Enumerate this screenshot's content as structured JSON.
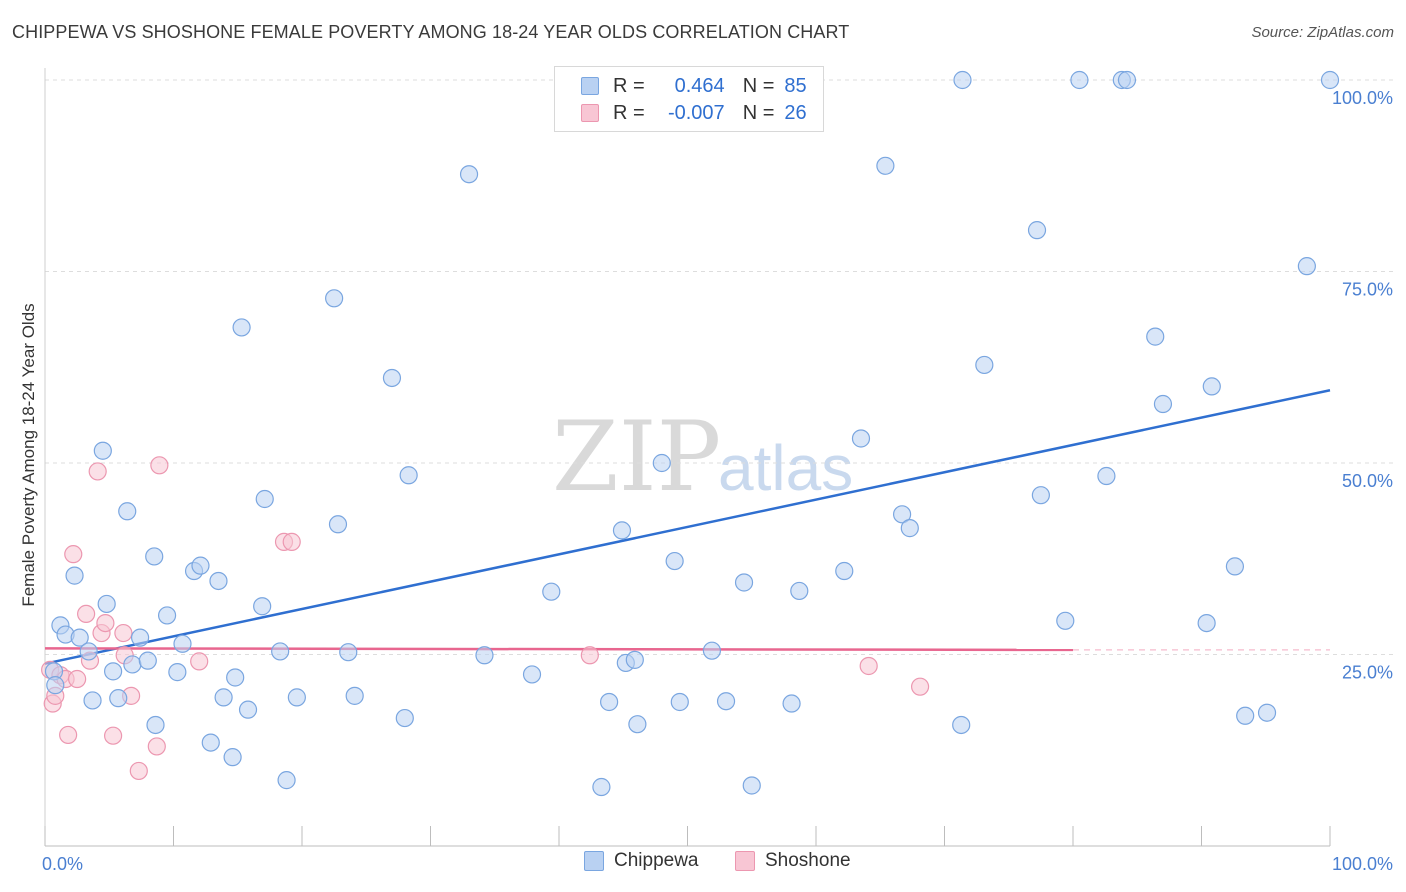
{
  "title": "CHIPPEWA VS SHOSHONE FEMALE POVERTY AMONG 18-24 YEAR OLDS CORRELATION CHART",
  "source": "Source: ZipAtlas.com",
  "watermark": {
    "zip": "ZIP",
    "atlas": "atlas"
  },
  "legend": {
    "r_label": "R =",
    "n_label": "N =",
    "chippewa": {
      "r": "0.464",
      "n": "85"
    },
    "shoshone": {
      "r": "-0.007",
      "n": "26"
    }
  },
  "colors": {
    "chippewa_fill": "#b9d1f2",
    "chippewa_stroke": "#7aa6e0",
    "chippewa_line": "#2f6fd0",
    "shoshone_fill": "#f8c6d4",
    "shoshone_stroke": "#ec97b0",
    "shoshone_line": "#e8668f",
    "axis_text": "#4a7fd1",
    "grid": "#dddddd"
  },
  "chart_data": {
    "type": "scatter",
    "title": "CHIPPEWA VS SHOSHONE FEMALE POVERTY AMONG 18-24 YEAR OLDS CORRELATION CHART",
    "xlabel": "",
    "ylabel": "Female Poverty Among 18-24 Year Olds",
    "x_tick_labels": [
      "0.0%",
      "100.0%"
    ],
    "y_tick_labels": [
      "25.0%",
      "50.0%",
      "75.0%",
      "100.0%"
    ],
    "y_ticks": [
      25,
      50,
      75,
      100
    ],
    "xlim": [
      0,
      100
    ],
    "ylim": [
      0,
      100
    ],
    "grid": "horizontal dashed",
    "legend_position": "top-center",
    "series": [
      {
        "name": "Chippewa",
        "trend": {
          "x": [
            0,
            100
          ],
          "y": [
            23.8,
            59.5
          ]
        },
        "points": [
          [
            0.7,
            22.8
          ],
          [
            0.8,
            21.0
          ],
          [
            1.2,
            28.8
          ],
          [
            1.6,
            27.6
          ],
          [
            2.3,
            35.3
          ],
          [
            2.7,
            27.2
          ],
          [
            3.4,
            25.4
          ],
          [
            3.7,
            19.0
          ],
          [
            4.5,
            51.6
          ],
          [
            4.8,
            31.6
          ],
          [
            5.3,
            22.8
          ],
          [
            5.7,
            19.3
          ],
          [
            6.4,
            43.7
          ],
          [
            6.8,
            23.7
          ],
          [
            7.4,
            27.2
          ],
          [
            8.0,
            24.2
          ],
          [
            8.6,
            15.8
          ],
          [
            8.5,
            37.8
          ],
          [
            9.5,
            30.1
          ],
          [
            10.3,
            22.7
          ],
          [
            10.7,
            26.4
          ],
          [
            11.6,
            35.9
          ],
          [
            12.1,
            36.6
          ],
          [
            12.9,
            13.5
          ],
          [
            13.5,
            34.6
          ],
          [
            13.9,
            19.4
          ],
          [
            14.8,
            22.0
          ],
          [
            14.6,
            11.6
          ],
          [
            15.3,
            67.7
          ],
          [
            15.8,
            17.8
          ],
          [
            16.9,
            31.3
          ],
          [
            17.1,
            45.3
          ],
          [
            18.3,
            25.4
          ],
          [
            18.8,
            8.6
          ],
          [
            19.6,
            19.4
          ],
          [
            22.5,
            71.5
          ],
          [
            22.8,
            42.0
          ],
          [
            23.6,
            25.3
          ],
          [
            24.1,
            19.6
          ],
          [
            27.0,
            61.1
          ],
          [
            28.0,
            16.7
          ],
          [
            28.3,
            48.4
          ],
          [
            33.0,
            87.7
          ],
          [
            34.2,
            24.9
          ],
          [
            37.9,
            22.4
          ],
          [
            39.4,
            33.2
          ],
          [
            43.3,
            7.7
          ],
          [
            43.9,
            18.8
          ],
          [
            44.9,
            41.2
          ],
          [
            45.2,
            23.9
          ],
          [
            45.9,
            24.3
          ],
          [
            46.1,
            15.9
          ],
          [
            48.0,
            50.0
          ],
          [
            49.0,
            37.2
          ],
          [
            49.4,
            18.8
          ],
          [
            53.0,
            18.9
          ],
          [
            51.9,
            25.5
          ],
          [
            54.4,
            34.4
          ],
          [
            55.0,
            7.9
          ],
          [
            58.1,
            18.6
          ],
          [
            58.7,
            33.3
          ],
          [
            62.2,
            35.9
          ],
          [
            63.5,
            53.2
          ],
          [
            65.4,
            88.8
          ],
          [
            66.7,
            43.3
          ],
          [
            67.3,
            41.5
          ],
          [
            71.3,
            15.8
          ],
          [
            71.4,
            100.0
          ],
          [
            73.1,
            62.8
          ],
          [
            77.2,
            80.4
          ],
          [
            77.5,
            45.8
          ],
          [
            79.4,
            29.4
          ],
          [
            80.5,
            100.0
          ],
          [
            82.6,
            48.3
          ],
          [
            83.8,
            100.0
          ],
          [
            84.2,
            100.0
          ],
          [
            86.4,
            66.5
          ],
          [
            87.0,
            57.7
          ],
          [
            90.4,
            29.1
          ],
          [
            90.8,
            60.0
          ],
          [
            92.6,
            36.5
          ],
          [
            93.4,
            17.0
          ],
          [
            95.1,
            17.4
          ],
          [
            98.2,
            75.7
          ],
          [
            100.0,
            100.0
          ]
        ]
      },
      {
        "name": "Shoshone",
        "trend": {
          "x": [
            0,
            80
          ],
          "y": [
            25.8,
            25.6
          ]
        },
        "points": [
          [
            0.4,
            23.0
          ],
          [
            0.6,
            18.6
          ],
          [
            0.8,
            19.6
          ],
          [
            1.2,
            22.3
          ],
          [
            1.6,
            21.8
          ],
          [
            1.8,
            14.5
          ],
          [
            2.2,
            38.1
          ],
          [
            2.5,
            21.8
          ],
          [
            3.2,
            30.3
          ],
          [
            3.5,
            24.2
          ],
          [
            4.1,
            48.9
          ],
          [
            4.4,
            27.8
          ],
          [
            4.7,
            29.1
          ],
          [
            5.3,
            14.4
          ],
          [
            6.1,
            27.8
          ],
          [
            6.2,
            24.9
          ],
          [
            6.7,
            19.6
          ],
          [
            7.3,
            9.8
          ],
          [
            8.7,
            13.0
          ],
          [
            8.9,
            49.7
          ],
          [
            12.0,
            24.1
          ],
          [
            18.6,
            39.7
          ],
          [
            19.2,
            39.7
          ],
          [
            42.4,
            24.9
          ],
          [
            64.1,
            23.5
          ],
          [
            68.1,
            20.8
          ]
        ]
      }
    ]
  }
}
